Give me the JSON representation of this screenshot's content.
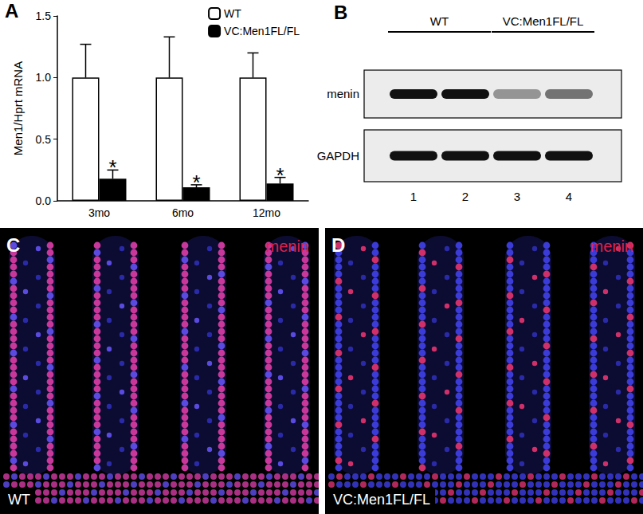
{
  "chart_data": {
    "panel": "A",
    "type": "bar",
    "y_label": "Men1/Hprt mRNA",
    "categories": [
      "3mo",
      "6mo",
      "12mo"
    ],
    "series": [
      {
        "name": "WT",
        "color": "#ffffff",
        "values": [
          1.0,
          1.0,
          1.0
        ],
        "errors": [
          0.27,
          0.33,
          0.2
        ]
      },
      {
        "name": "VC:Men1FL/FL",
        "color": "#000000",
        "values": [
          0.18,
          0.11,
          0.14
        ],
        "errors": [
          0.07,
          0.02,
          0.05
        ],
        "significance": [
          "*",
          "*",
          "*"
        ]
      }
    ],
    "ylim": [
      0,
      1.5
    ],
    "yticks": [
      {
        "value": 0,
        "label": "0.0"
      },
      {
        "value": 0.5,
        "label": "0.5"
      },
      {
        "value": 1,
        "label": "1.0"
      },
      {
        "value": 1.5,
        "label": "1.5"
      }
    ],
    "grid": false,
    "legend": "top-right"
  },
  "western_blot": {
    "panel": "B",
    "groups": [
      {
        "label": "WT",
        "lanes": [
          1,
          2
        ]
      },
      {
        "label": "VC:Men1FL/FL",
        "lanes": [
          3,
          4
        ]
      }
    ],
    "lanes": [
      1,
      2,
      3,
      4
    ],
    "rows": [
      {
        "label": "menin",
        "band_intensity": [
          1,
          1,
          0.4,
          0.55
        ]
      },
      {
        "label": "GAPDH",
        "band_intensity": [
          1,
          1,
          1,
          1
        ]
      }
    ]
  },
  "micrographs": [
    {
      "panel": "C",
      "stain": "menin",
      "genotype": "WT"
    },
    {
      "panel": "D",
      "stain": "menin",
      "genotype": "VC:Men1FL/FL"
    }
  ]
}
